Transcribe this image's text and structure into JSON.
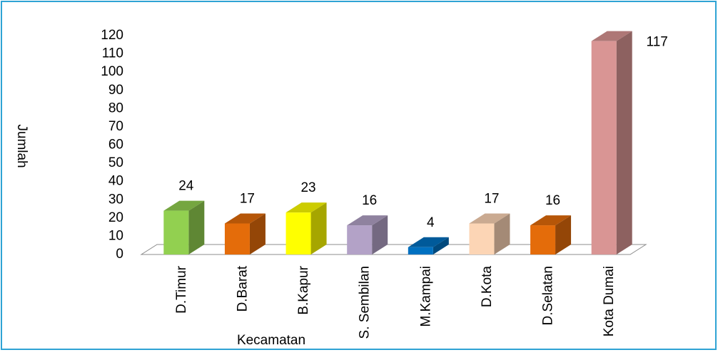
{
  "chart_data": {
    "type": "bar3d",
    "categories": [
      "D.Timur",
      "D.Barat",
      "B.Kapur",
      "S. Sembilan",
      "M.Kampai",
      "D.Kota",
      "D.Selatan",
      "Kota Dumai"
    ],
    "values": [
      24,
      17,
      23,
      16,
      4,
      17,
      16,
      117
    ],
    "colors": [
      "#92d050",
      "#e46c0a",
      "#ffff00",
      "#b3a2c7",
      "#0070c0",
      "#fcd5b5",
      "#e46c0a",
      "#d99594"
    ],
    "ylim": [
      0,
      120
    ],
    "yticks": [
      0,
      10,
      20,
      30,
      40,
      50,
      60,
      70,
      80,
      90,
      100,
      110,
      120
    ],
    "y_label": "Jumlah",
    "x_label": "Kecamatan",
    "grid": false
  }
}
